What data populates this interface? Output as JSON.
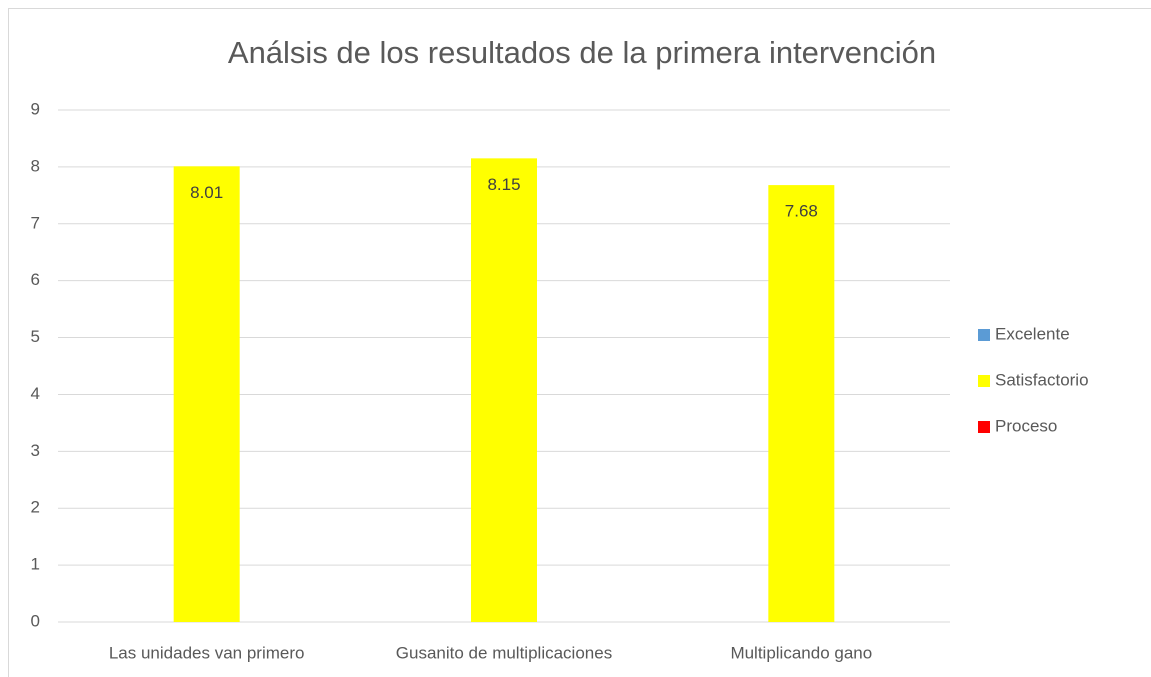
{
  "chart_data": {
    "type": "bar",
    "title": "Análsis de los resultados de la primera intervención",
    "categories": [
      "Las unidades van primero",
      "Gusanito de multiplicaciones",
      "Multiplicando gano"
    ],
    "series": [
      {
        "name": "Excelente",
        "color": "#5b9bd5",
        "values": [
          null,
          null,
          null
        ]
      },
      {
        "name": "Satisfactorio",
        "color": "#ffff00",
        "values": [
          8.01,
          8.15,
          7.68
        ]
      },
      {
        "name": "Proceso",
        "color": "#ff0000",
        "values": [
          null,
          null,
          null
        ]
      }
    ],
    "ylim": [
      0,
      9
    ],
    "yticks": [
      0,
      1,
      2,
      3,
      4,
      5,
      6,
      7,
      8,
      9
    ],
    "grid": true,
    "legend": "right",
    "data_labels": true
  }
}
